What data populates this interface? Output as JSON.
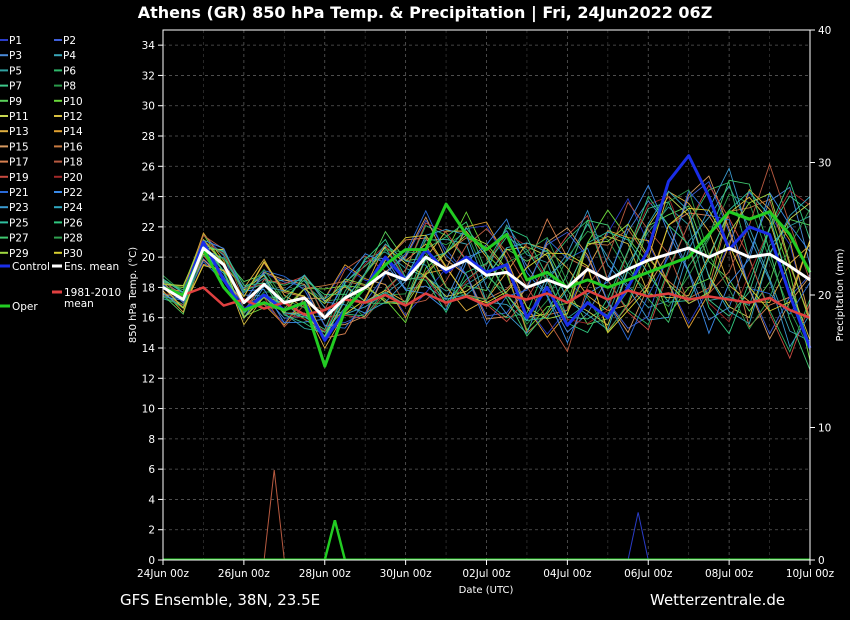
{
  "title": "Athens  (GR)  850 hPa Temp. & Precipitation | Fri, 24Jun2022 06Z",
  "footer_left": "GFS Ensemble, 38N, 23.5E",
  "footer_right": "Wetterzentrale.de",
  "chart_data": {
    "type": "line",
    "xlabel": "Date (UTC)",
    "ylabel_left": "850 hPa Temp. (°C)",
    "ylabel_right": "Precipitation (mm)",
    "x_ticks": [
      "24Jun 00z",
      "26Jun 00z",
      "28Jun 00z",
      "30Jun 00z",
      "02Jul 00z",
      "04Jul 00z",
      "06Jul 00z",
      "08Jul 00z",
      "10Jul 00z"
    ],
    "ylim_left": [
      0,
      35
    ],
    "y_ticks_left": [
      0,
      2,
      4,
      6,
      8,
      10,
      12,
      14,
      16,
      18,
      20,
      22,
      24,
      26,
      28,
      30,
      32,
      34
    ],
    "ylim_right": [
      0,
      40
    ],
    "y_ticks_right": [
      0,
      10,
      20,
      30,
      40
    ],
    "grid": true,
    "legend_placement": "left outside",
    "members": [
      {
        "name": "P1",
        "color": "#2a3cc8"
      },
      {
        "name": "P2",
        "color": "#3f5fd8"
      },
      {
        "name": "P3",
        "color": "#4a8ad8"
      },
      {
        "name": "P4",
        "color": "#3aa6b8"
      },
      {
        "name": "P5",
        "color": "#30a0a0"
      },
      {
        "name": "P6",
        "color": "#2fb86a"
      },
      {
        "name": "P7",
        "color": "#3ec88a"
      },
      {
        "name": "P8",
        "color": "#2a9a4a"
      },
      {
        "name": "P9",
        "color": "#5ad05a"
      },
      {
        "name": "P10",
        "color": "#6ad83a"
      },
      {
        "name": "P11",
        "color": "#c8d850"
      },
      {
        "name": "P12",
        "color": "#d8c040"
      },
      {
        "name": "P13",
        "color": "#e0b040"
      },
      {
        "name": "P14",
        "color": "#e0a030"
      },
      {
        "name": "P15",
        "color": "#d89a60"
      },
      {
        "name": "P16",
        "color": "#c87a40"
      },
      {
        "name": "P17",
        "color": "#d88050"
      },
      {
        "name": "P18",
        "color": "#b85a40"
      },
      {
        "name": "P19",
        "color": "#c84a40"
      },
      {
        "name": "P20",
        "color": "#a02828"
      },
      {
        "name": "P21",
        "color": "#2a6ad8"
      },
      {
        "name": "P22",
        "color": "#3a8ae8"
      },
      {
        "name": "P23",
        "color": "#3a9ad0"
      },
      {
        "name": "P24",
        "color": "#30a8c0"
      },
      {
        "name": "P25",
        "color": "#30c0a0"
      },
      {
        "name": "P26",
        "color": "#30c880"
      },
      {
        "name": "P27",
        "color": "#40c870"
      },
      {
        "name": "P28",
        "color": "#30a050"
      },
      {
        "name": "P29",
        "color": "#a0d840"
      },
      {
        "name": "P30",
        "color": "#d8d030"
      }
    ],
    "special_legend": [
      {
        "name": "Control",
        "color": "#1a2ee8"
      },
      {
        "name": "Ens. mean",
        "color": "#ffffff"
      },
      {
        "name": "Oper",
        "color": "#22cc22"
      },
      {
        "name": "1981-2010 mean",
        "color": "#e04040"
      }
    ],
    "x_hours": [
      0,
      12,
      24,
      36,
      48,
      60,
      72,
      84,
      96,
      108,
      120,
      132,
      144,
      156,
      168,
      180,
      192,
      204,
      216,
      228,
      240,
      252,
      264,
      276,
      288,
      300,
      312,
      324,
      336,
      348,
      360,
      372,
      384
    ],
    "series": [
      {
        "name": "Control",
        "values": [
          18.0,
          17.5,
          21.0,
          18.5,
          16.5,
          17.5,
          16.5,
          17.0,
          14.5,
          16.5,
          18.0,
          20.0,
          18.5,
          20.5,
          19.0,
          20.0,
          19.0,
          19.5,
          16.0,
          18.0,
          15.5,
          17.0,
          16.0,
          18.0,
          20.5,
          25.0,
          26.7,
          24.0,
          20.5,
          22.0,
          21.5,
          17.5,
          14.0
        ]
      },
      {
        "name": "Ens. mean",
        "values": [
          18.0,
          17.2,
          20.6,
          19.5,
          17.0,
          18.2,
          17.0,
          17.3,
          16.0,
          17.3,
          18.0,
          19.0,
          18.5,
          20.0,
          19.2,
          19.8,
          18.8,
          19.0,
          18.0,
          18.5,
          18.0,
          19.2,
          18.5,
          19.2,
          19.8,
          20.2,
          20.6,
          20.0,
          20.6,
          20.0,
          20.2,
          19.4,
          18.5
        ]
      },
      {
        "name": "Oper",
        "values": [
          18.0,
          17.5,
          20.5,
          18.0,
          16.5,
          17.0,
          16.5,
          17.0,
          12.8,
          16.5,
          18.0,
          19.5,
          20.5,
          20.5,
          23.5,
          21.5,
          20.5,
          21.5,
          18.5,
          19.0,
          18.0,
          18.5,
          18.0,
          18.5,
          19.0,
          19.5,
          20.0,
          21.5,
          23.0,
          22.5,
          23.0,
          21.5,
          19.0
        ]
      },
      {
        "name": "1981-2010 mean",
        "values": [
          18.0,
          17.5,
          18.0,
          16.8,
          17.2,
          16.6,
          17.0,
          16.2,
          16.5,
          17.2,
          17.0,
          17.5,
          16.8,
          17.6,
          17.0,
          17.4,
          16.8,
          17.5,
          17.2,
          17.6,
          17.0,
          17.8,
          17.2,
          17.8,
          17.4,
          17.6,
          17.2,
          17.4,
          17.2,
          17.0,
          17.3,
          16.5,
          16.0
        ]
      }
    ],
    "precip_peaks": [
      {
        "name": "Oper",
        "x_hour": 102,
        "value": 3.0
      },
      {
        "name": "P18",
        "x_hour": 66,
        "value": 6.8
      },
      {
        "name": "P1",
        "x_hour": 282,
        "value": 3.6
      }
    ]
  }
}
